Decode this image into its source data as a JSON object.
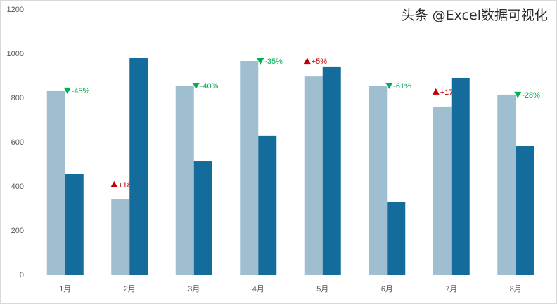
{
  "chart_data": {
    "type": "bar",
    "categories": [
      "1月",
      "2月",
      "3月",
      "4月",
      "5月",
      "6月",
      "7月",
      "8月"
    ],
    "series": [
      {
        "values": [
          832,
          340,
          854,
          965,
          898,
          854,
          759,
          813
        ],
        "color": "#9fbfd0"
      },
      {
        "values": [
          454,
          981,
          511,
          629,
          940,
          327,
          889,
          581
        ],
        "color": "#146c9c"
      }
    ],
    "change_labels": [
      "-45%",
      "+188%",
      "-40%",
      "-35%",
      "+5%",
      "-61%",
      "+17%",
      "-28%"
    ],
    "up_color": "#c00000",
    "down_color": "#00b050",
    "ylim": [
      0,
      1200
    ],
    "yticks": [
      0,
      200,
      400,
      600,
      800,
      1000,
      1200
    ],
    "grid": false,
    "title": "",
    "xlabel": "",
    "ylabel": ""
  },
  "watermark": "头条 @Excel数据可视化"
}
